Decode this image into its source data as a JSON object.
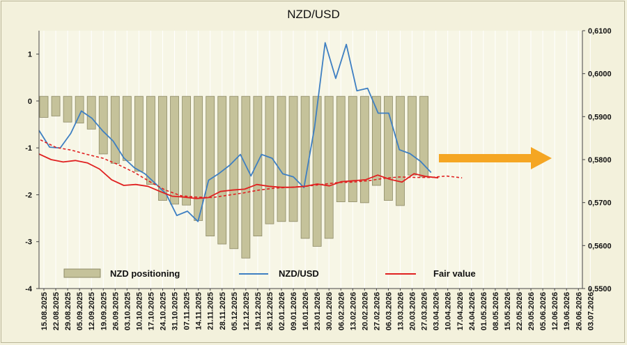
{
  "chart_data": {
    "type": "bar+line",
    "title": "NZD/USD",
    "left_axis": {
      "ticks": [
        -4,
        -3,
        -2,
        -1,
        0,
        1
      ],
      "range": [
        -4,
        1.5
      ]
    },
    "right_axis": {
      "ticks": [
        "0,5500",
        "0,5600",
        "0,5700",
        "0,5800",
        "0,5900",
        "0,6000",
        "0,6100"
      ],
      "range": [
        0.55,
        0.61
      ]
    },
    "x_labels": [
      "15.08.2025",
      "22.08.2025",
      "29.08.2025",
      "05.09.2025",
      "12.09.2025",
      "19.09.2025",
      "26.09.2025",
      "03.10.2025",
      "10.10.2025",
      "17.10.2025",
      "24.10.2025",
      "31.10.2025",
      "07.11.2025",
      "14.11.2025",
      "21.11.2025",
      "28.11.2025",
      "05.12.2025",
      "12.12.2025",
      "19.12.2025",
      "26.12.2025",
      "02.01.2026",
      "09.01.2026",
      "16.01.2026",
      "23.01.2026",
      "30.01.2026",
      "06.02.2026",
      "13.02.2026",
      "20.02.2026",
      "27.02.2026",
      "06.03.2026",
      "13.03.2026",
      "20.03.2026",
      "27.03.2026",
      "03.04.2026",
      "10.04.2026",
      "17.04.2026",
      "24.04.2026",
      "01.05.2026",
      "08.05.2026",
      "15.05.2026",
      "22.05.2026",
      "29.05.2026",
      "05.06.2026",
      "12.06.2026",
      "19.06.2026",
      "26.06.2026",
      "03.07.2026"
    ],
    "series": [
      {
        "name": "NZD positioning",
        "type": "bar",
        "axis": "left",
        "color": "#c5c29a",
        "values": [
          -0.35,
          -0.32,
          -0.45,
          -0.47,
          -0.6,
          -1.13,
          -1.33,
          -1.27,
          -1.5,
          -1.78,
          -2.12,
          -2.2,
          -2.22,
          -2.55,
          -2.88,
          -3.05,
          -3.15,
          -3.35,
          -2.88,
          -2.62,
          -2.57,
          -2.57,
          -2.93,
          -3.1,
          -2.93,
          -2.15,
          -2.15,
          -2.17,
          -1.8,
          -2.12,
          -2.23,
          -1.58,
          -1.62
        ]
      },
      {
        "name": "NZD/USD",
        "type": "line",
        "axis": "right",
        "color": "#3e7fc2",
        "values": [
          0.5868,
          0.5829,
          0.5827,
          0.5861,
          0.5913,
          0.5896,
          0.5867,
          0.5843,
          0.5804,
          0.5781,
          0.5767,
          0.5744,
          0.572,
          0.567,
          0.568,
          0.5656,
          0.5752,
          0.5768,
          0.5787,
          0.5812,
          0.5762,
          0.5812,
          0.5803,
          0.5767,
          0.576,
          0.5735,
          0.5875,
          0.6072,
          0.5989,
          0.6068,
          0.596,
          0.5966,
          0.5908,
          0.5908,
          0.5823,
          0.5814,
          0.5796,
          0.577
        ]
      },
      {
        "name": "Fair value",
        "type": "line",
        "axis": "left",
        "color": "#e02020",
        "values": [
          -1.13,
          -1.25,
          -1.3,
          -1.27,
          -1.32,
          -1.45,
          -1.68,
          -1.8,
          -1.78,
          -1.82,
          -1.93,
          -2.03,
          -2.05,
          -2.08,
          -2.06,
          -1.93,
          -1.9,
          -1.88,
          -1.78,
          -1.82,
          -1.84,
          -1.84,
          -1.82,
          -1.77,
          -1.81,
          -1.72,
          -1.7,
          -1.68,
          -1.58,
          -1.67,
          -1.73,
          -1.55,
          -1.61,
          -1.64
        ]
      },
      {
        "name": "Fair value trend",
        "type": "dashed-line",
        "axis": "left",
        "color": "#e02020",
        "values": [
          -0.83,
          -0.99,
          -1.05,
          -1.14,
          -1.22,
          -1.36,
          -1.52,
          -1.72,
          -1.9,
          -2.02,
          -2.05,
          -2.06,
          -2.01,
          -1.96,
          -1.9,
          -1.86,
          -1.84,
          -1.82,
          -1.78,
          -1.74,
          -1.73,
          -1.7,
          -1.65,
          -1.62,
          -1.63,
          -1.63,
          -1.6,
          -1.64
        ]
      }
    ],
    "legend": {
      "position": "bottom"
    },
    "arrow": {
      "color": "#f5a623",
      "direction": "right"
    }
  },
  "legend": {
    "positioning": "NZD positioning",
    "nzdusd": "NZD/USD",
    "fair_value": "Fair value"
  }
}
